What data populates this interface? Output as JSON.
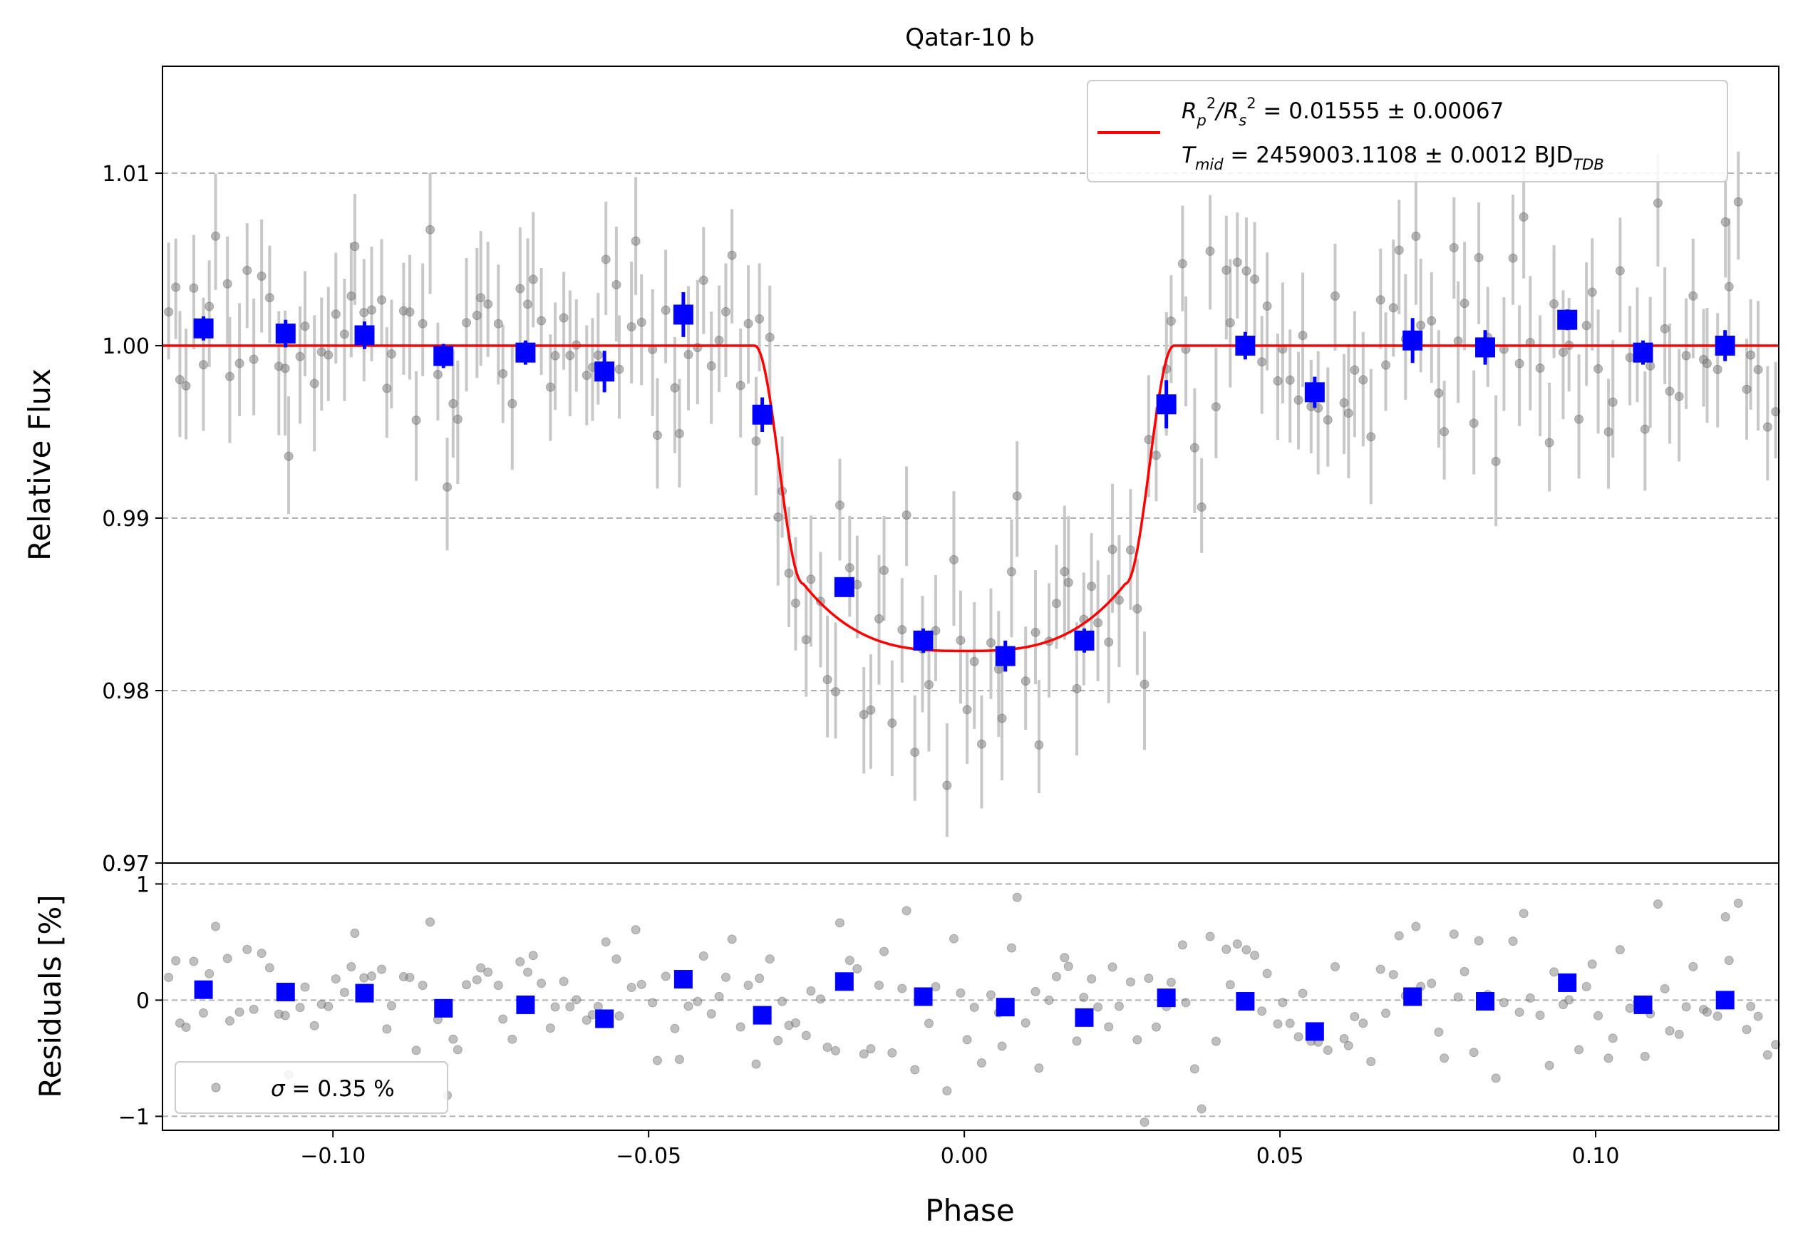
{
  "chart_data": [
    {
      "type": "scatter",
      "title": "Qatar-10 b",
      "xlabel": "",
      "ylabel": "Relative Flux",
      "xlim": [
        -0.127,
        0.129
      ],
      "ylim": [
        0.97,
        1.0162
      ],
      "yticks": [
        0.97,
        0.98,
        0.99,
        1.0,
        1.01
      ],
      "ytick_labels": [
        "0.97",
        "0.98",
        "0.99",
        "1.00",
        "1.01"
      ],
      "grid": "horizontal dashed",
      "legend_position": "top-right",
      "legend": {
        "line1_prefix": "R",
        "line1_sub_a": "p",
        "line1_sup_a": "2",
        "line1_slash": "/R",
        "line1_sub_b": "s",
        "line1_sup_b": "2",
        "line1_value": " = 0.01555 ± 0.00067",
        "line2_prefix": "T",
        "line2_sub": "mid",
        "line2_value": " = 2459003.1108 ± 0.0012 BJD",
        "line2_unit_sub": "TDB"
      },
      "model": {
        "depth": 0.0177,
        "baseline": 1.0,
        "t1": 0.0332,
        "t2": 0.0255,
        "color": "#ff0000"
      },
      "binned": {
        "color": "#0000ff",
        "x": [
          -0.1205,
          -0.1075,
          -0.095,
          -0.0825,
          -0.0695,
          -0.057,
          -0.0445,
          -0.032,
          -0.019,
          -0.0065,
          0.0065,
          0.019,
          0.032,
          0.0445,
          0.0555,
          0.071,
          0.0825,
          0.0955,
          0.1075,
          0.1205
        ],
        "y": [
          1.001,
          1.0007,
          1.0006,
          0.9994,
          0.9996,
          0.9985,
          1.0018,
          0.996,
          0.986,
          0.9829,
          0.982,
          0.9829,
          0.9966,
          1.0,
          0.9973,
          1.0003,
          0.9999,
          1.0015,
          0.9996,
          1.0
        ],
        "yerr": [
          0.0007,
          0.0008,
          0.0008,
          0.0007,
          0.0007,
          0.0012,
          0.0013,
          0.001,
          0.0005,
          0.0007,
          0.0009,
          0.0007,
          0.0014,
          0.0008,
          0.0009,
          0.0013,
          0.001,
          0.0006,
          0.0007,
          0.0009
        ]
      },
      "raw_points": {
        "color": "#808080",
        "count": 220,
        "yerr": 0.0035
      }
    },
    {
      "type": "scatter",
      "xlabel": "Phase",
      "ylabel": "Residuals [%]",
      "xlim": [
        -0.127,
        0.129
      ],
      "ylim": [
        -1.12,
        1.18
      ],
      "yticks": [
        -1,
        0,
        1
      ],
      "ytick_labels": [
        "−1",
        "0",
        "1"
      ],
      "xticks": [
        -0.1,
        -0.05,
        0.0,
        0.05,
        0.1
      ],
      "xtick_labels": [
        "−0.10",
        "−0.05",
        "0.00",
        "0.05",
        "0.10"
      ],
      "grid": "horizontal dashed",
      "legend_position": "lower-left",
      "legend": {
        "label_symbol": "σ",
        "label_value": " = 0.35 %"
      },
      "binned_residuals": [
        0.09,
        0.07,
        0.06,
        -0.07,
        -0.04,
        -0.16,
        0.18,
        -0.13,
        0.16,
        0.03,
        -0.06,
        -0.15,
        0.02,
        -0.01,
        -0.27,
        0.03,
        -0.01,
        0.15,
        -0.04,
        0.0
      ],
      "sigma_percent": 0.35
    }
  ]
}
